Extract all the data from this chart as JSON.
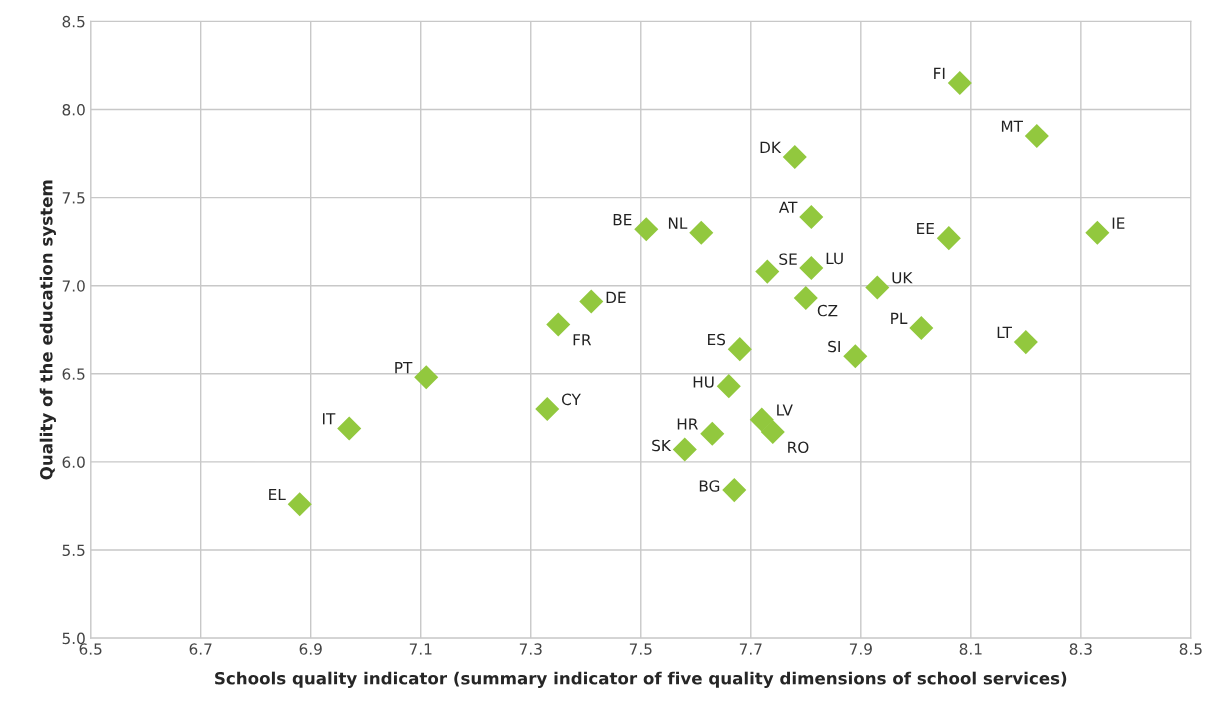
{
  "chart_data": {
    "type": "scatter",
    "xlabel": "Schools quality indicator (summary indicator of five quality dimensions of school services)",
    "ylabel": "Quality of the education system",
    "x": [
      8.08,
      8.22,
      7.78,
      7.81,
      8.33,
      7.51,
      7.61,
      8.06,
      7.73,
      7.81,
      7.93,
      7.8,
      7.41,
      7.35,
      8.01,
      8.2,
      7.68,
      7.89,
      7.11,
      7.66,
      7.33,
      6.97,
      7.72,
      7.74,
      7.63,
      7.58,
      7.67,
      6.88
    ],
    "series": [
      {
        "color": "#92c83e",
        "values": [
          8.15,
          7.85,
          7.73,
          7.39,
          7.3,
          7.32,
          7.3,
          7.27,
          7.08,
          7.1,
          6.99,
          6.93,
          6.91,
          6.78,
          6.76,
          6.68,
          6.64,
          6.6,
          6.48,
          6.43,
          6.3,
          6.19,
          6.24,
          6.17,
          6.16,
          6.07,
          5.84,
          5.76
        ]
      }
    ],
    "annotations": [
      {
        "text": "FI",
        "x": 8.08,
        "y": 8.15
      },
      {
        "text": "MT",
        "x": 8.22,
        "y": 7.85
      },
      {
        "text": "DK",
        "x": 7.78,
        "y": 7.73
      },
      {
        "text": "AT",
        "x": 7.81,
        "y": 7.39
      },
      {
        "text": "IE",
        "x": 8.33,
        "y": 7.3
      },
      {
        "text": "BE",
        "x": 7.51,
        "y": 7.32
      },
      {
        "text": "NL",
        "x": 7.61,
        "y": 7.3
      },
      {
        "text": "EE",
        "x": 8.06,
        "y": 7.27
      },
      {
        "text": "SE",
        "x": 7.73,
        "y": 7.08
      },
      {
        "text": "LU",
        "x": 7.81,
        "y": 7.1
      },
      {
        "text": "UK",
        "x": 7.93,
        "y": 6.99
      },
      {
        "text": "CZ",
        "x": 7.8,
        "y": 6.93
      },
      {
        "text": "DE",
        "x": 7.41,
        "y": 6.91
      },
      {
        "text": "FR",
        "x": 7.35,
        "y": 6.78
      },
      {
        "text": "PL",
        "x": 8.01,
        "y": 6.76
      },
      {
        "text": "LT",
        "x": 8.2,
        "y": 6.68
      },
      {
        "text": "ES",
        "x": 7.68,
        "y": 6.64
      },
      {
        "text": "SI",
        "x": 7.89,
        "y": 6.6
      },
      {
        "text": "PT",
        "x": 7.11,
        "y": 6.48
      },
      {
        "text": "HU",
        "x": 7.66,
        "y": 6.43
      },
      {
        "text": "CY",
        "x": 7.33,
        "y": 6.3
      },
      {
        "text": "IT",
        "x": 6.97,
        "y": 6.19
      },
      {
        "text": "LV",
        "x": 7.72,
        "y": 6.24
      },
      {
        "text": "RO",
        "x": 7.74,
        "y": 6.17
      },
      {
        "text": "HR",
        "x": 7.63,
        "y": 6.16
      },
      {
        "text": "SK",
        "x": 7.58,
        "y": 6.07
      },
      {
        "text": "BG",
        "x": 7.67,
        "y": 5.84
      },
      {
        "text": "EL",
        "x": 6.88,
        "y": 5.76
      }
    ],
    "xlim": [
      6.5,
      8.5
    ],
    "xticks": [
      6.5,
      6.7,
      6.9,
      7.1,
      7.3,
      7.5,
      7.7,
      7.9,
      8.1,
      8.3,
      8.5
    ],
    "ylim": [
      5.0,
      8.5
    ],
    "yticks": [
      {
        "value": 5.0,
        "label": "5.0"
      },
      5.5,
      {
        "value": 6.0,
        "label": "6.0"
      },
      6.5,
      {
        "value": 7.0,
        "label": "7.0"
      },
      7.5,
      {
        "value": 8.0,
        "label": "8.0"
      },
      8.5
    ],
    "grid": true,
    "marker": "diamond",
    "legend": false
  }
}
